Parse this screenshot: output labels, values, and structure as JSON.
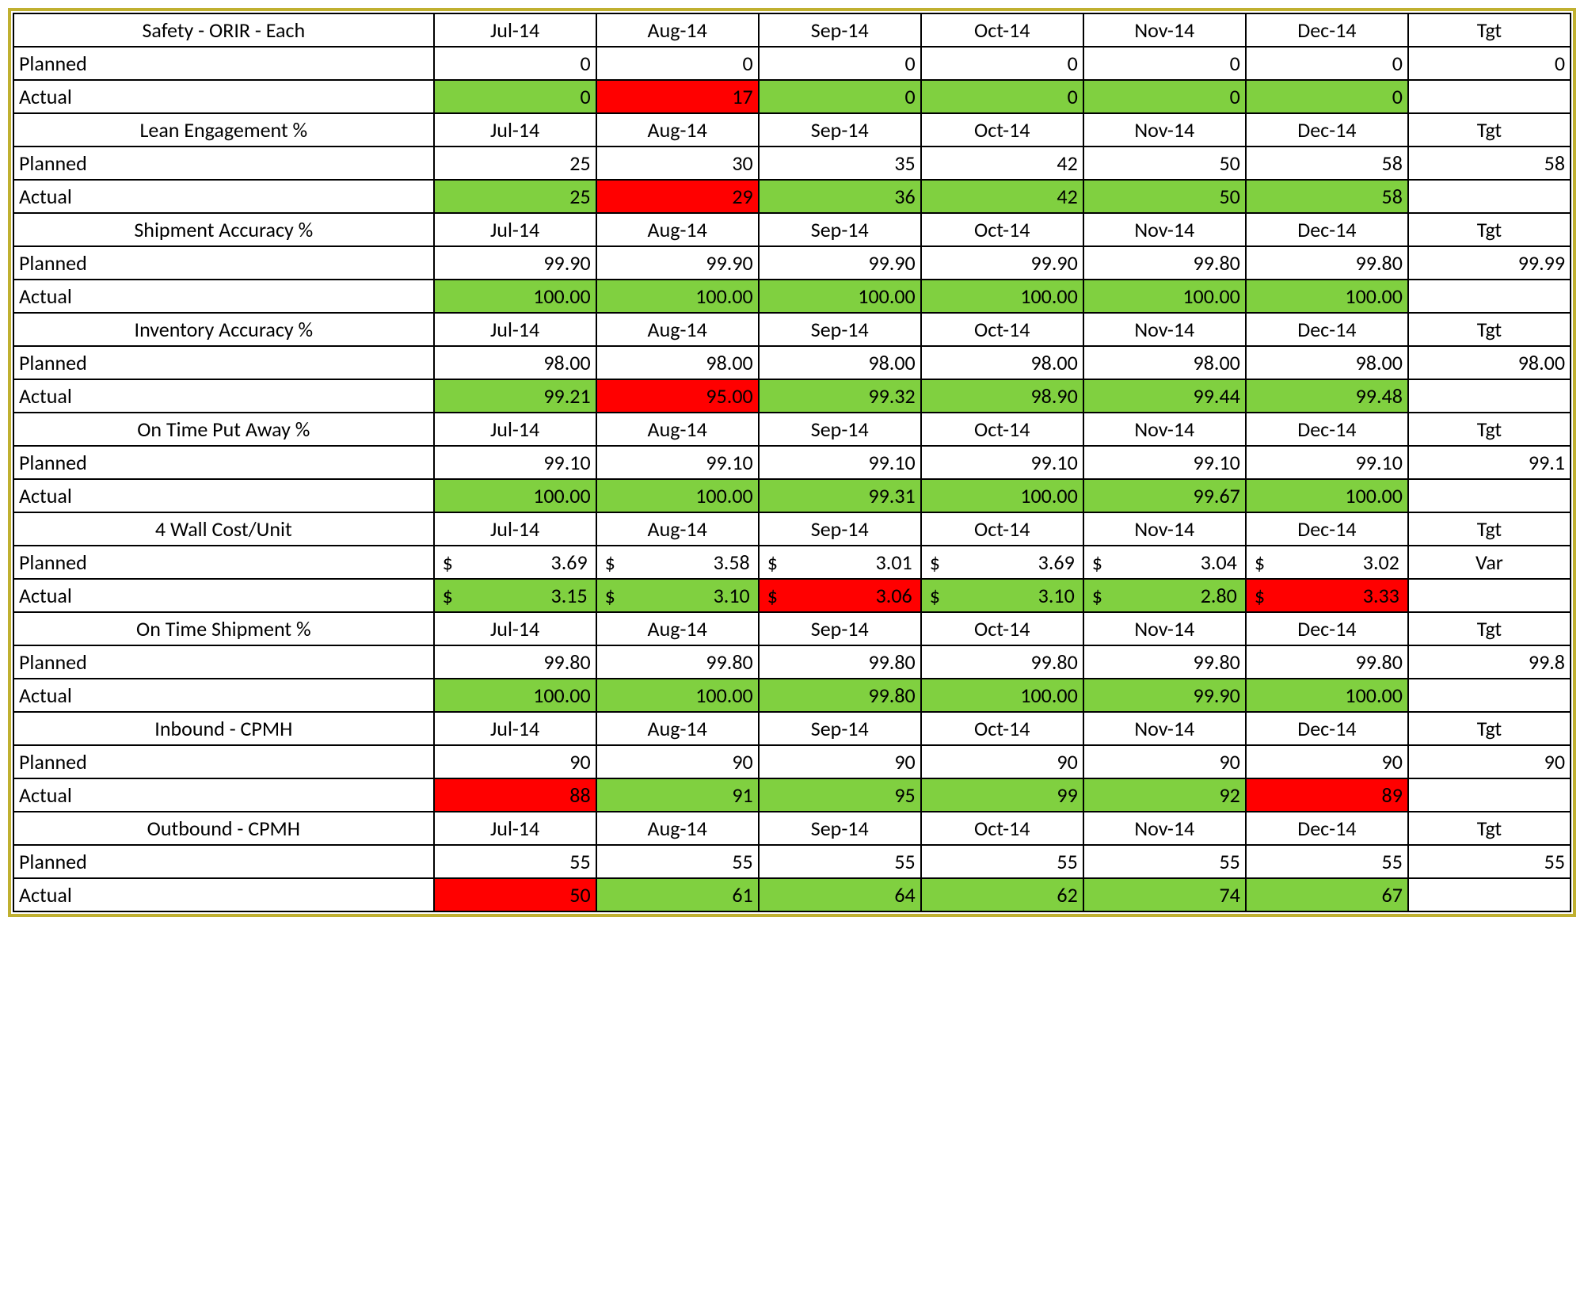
{
  "colors": {
    "green": "#80d040",
    "red": "#ff0000",
    "border": "#000000",
    "outer_border": "#c0b030",
    "text": "#000000",
    "background": "#ffffff"
  },
  "typography": {
    "font_family": "Calibri, Arial, sans-serif",
    "font_size_pt": 20
  },
  "months": [
    "Jul-14",
    "Aug-14",
    "Sep-14",
    "Oct-14",
    "Nov-14",
    "Dec-14"
  ],
  "tgt_label": "Tgt",
  "planned_label": "Planned",
  "actual_label": "Actual",
  "sections": [
    {
      "title": "Safety - ORIR - Each",
      "tgt": "0",
      "planned": [
        "0",
        "0",
        "0",
        "0",
        "0",
        "0"
      ],
      "actual": [
        "0",
        "17",
        "0",
        "0",
        "0",
        "0"
      ],
      "actual_colors": [
        "green",
        "red",
        "green",
        "green",
        "green",
        "green"
      ]
    },
    {
      "title": "Lean Engagement  %",
      "tgt": "58",
      "planned": [
        "25",
        "30",
        "35",
        "42",
        "50",
        "58"
      ],
      "actual": [
        "25",
        "29",
        "36",
        "42",
        "50",
        "58"
      ],
      "actual_colors": [
        "green",
        "red",
        "green",
        "green",
        "green",
        "green"
      ]
    },
    {
      "title": "Shipment Accuracy %",
      "tgt": "99.99",
      "planned": [
        "99.90",
        "99.90",
        "99.90",
        "99.90",
        "99.80",
        "99.80"
      ],
      "actual": [
        "100.00",
        "100.00",
        "100.00",
        "100.00",
        "100.00",
        "100.00"
      ],
      "actual_colors": [
        "green",
        "green",
        "green",
        "green",
        "green",
        "green"
      ]
    },
    {
      "title": "Inventory Accuracy %",
      "tgt": "98.00",
      "planned": [
        "98.00",
        "98.00",
        "98.00",
        "98.00",
        "98.00",
        "98.00"
      ],
      "actual": [
        "99.21",
        "95.00",
        "99.32",
        "98.90",
        "99.44",
        "99.48"
      ],
      "actual_colors": [
        "green",
        "red",
        "green",
        "green",
        "green",
        "green"
      ]
    },
    {
      "title": "On Time Put Away %",
      "tgt": "99.1",
      "planned": [
        "99.10",
        "99.10",
        "99.10",
        "99.10",
        "99.10",
        "99.10"
      ],
      "actual": [
        "100.00",
        "100.00",
        "99.31",
        "100.00",
        "99.67",
        "100.00"
      ],
      "actual_colors": [
        "green",
        "green",
        "green",
        "green",
        "green",
        "green"
      ]
    },
    {
      "title": "4 Wall Cost/Unit",
      "tgt": "Var",
      "money": true,
      "currency": "$",
      "planned": [
        "3.69",
        "3.58",
        "3.01",
        "3.69",
        "3.04",
        "3.02"
      ],
      "actual": [
        "3.15",
        "3.10",
        "3.06",
        "3.10",
        "2.80",
        "3.33"
      ],
      "actual_colors": [
        "green",
        "green",
        "red",
        "green",
        "green",
        "red"
      ]
    },
    {
      "title": "On Time Shipment %",
      "tgt": "99.8",
      "planned": [
        "99.80",
        "99.80",
        "99.80",
        "99.80",
        "99.80",
        "99.80"
      ],
      "actual": [
        "100.00",
        "100.00",
        "99.80",
        "100.00",
        "99.90",
        "100.00"
      ],
      "actual_colors": [
        "green",
        "green",
        "green",
        "green",
        "green",
        "green"
      ]
    },
    {
      "title": "Inbound - CPMH",
      "tgt": "90",
      "planned": [
        "90",
        "90",
        "90",
        "90",
        "90",
        "90"
      ],
      "actual": [
        "88",
        "91",
        "95",
        "99",
        "92",
        "89"
      ],
      "actual_colors": [
        "red",
        "green",
        "green",
        "green",
        "green",
        "red"
      ]
    },
    {
      "title": "Outbound - CPMH",
      "tgt": "55",
      "planned": [
        "55",
        "55",
        "55",
        "55",
        "55",
        "55"
      ],
      "actual": [
        "50",
        "61",
        "64",
        "62",
        "74",
        "67"
      ],
      "actual_colors": [
        "red",
        "green",
        "green",
        "green",
        "green",
        "green"
      ]
    }
  ]
}
